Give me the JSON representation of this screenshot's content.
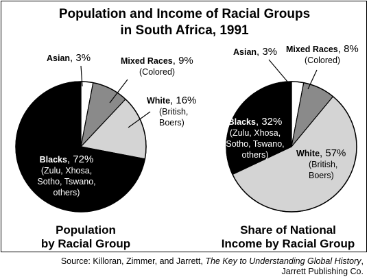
{
  "title": {
    "line1": "Population and Income of Racial Groups",
    "line2": "in South Africa, 1991"
  },
  "chart_data": [
    {
      "type": "pie",
      "caption_line1": "Population",
      "caption_line2": "by Racial Group",
      "slices": [
        {
          "group": "Asian",
          "value": 3,
          "label_value": "3%",
          "detail": [],
          "color": "#ffffff"
        },
        {
          "group": "Mixed Races",
          "value": 9,
          "label_value": "9%",
          "detail": [
            "(Colored)"
          ],
          "color": "#8a8a8a"
        },
        {
          "group": "White",
          "value": 16,
          "label_value": "16%",
          "detail": [
            "(British,",
            "Boers)"
          ],
          "color": "#d4d4d4"
        },
        {
          "group": "Blacks",
          "value": 72,
          "label_value": "72%",
          "detail": [
            "(Zulu, Xhosa,",
            "Sotho, Tswano,",
            "others)"
          ],
          "color": "#000000"
        }
      ]
    },
    {
      "type": "pie",
      "caption_line1": "Share of National",
      "caption_line2": "Income by Racial Group",
      "slices": [
        {
          "group": "Asian",
          "value": 3,
          "label_value": "3%",
          "detail": [],
          "color": "#ffffff"
        },
        {
          "group": "Mixed Races",
          "value": 8,
          "label_value": "8%",
          "detail": [
            "(Colored)"
          ],
          "color": "#8a8a8a"
        },
        {
          "group": "White",
          "value": 57,
          "label_value": "57%",
          "detail": [
            "(British,",
            "Boers)"
          ],
          "color": "#d4d4d4"
        },
        {
          "group": "Blacks",
          "value": 32,
          "label_value": "32%",
          "detail": [
            "(Zulu, Xhosa,",
            "Sotho, Tswano,",
            "others)"
          ],
          "color": "#000000"
        }
      ]
    }
  ],
  "source": {
    "prefix": "Source: Killoran, Zimmer, and Jarrett, ",
    "book": "The Key to Understanding Global History",
    "suffix": ",",
    "publisher": "Jarrett Publishing Co."
  }
}
